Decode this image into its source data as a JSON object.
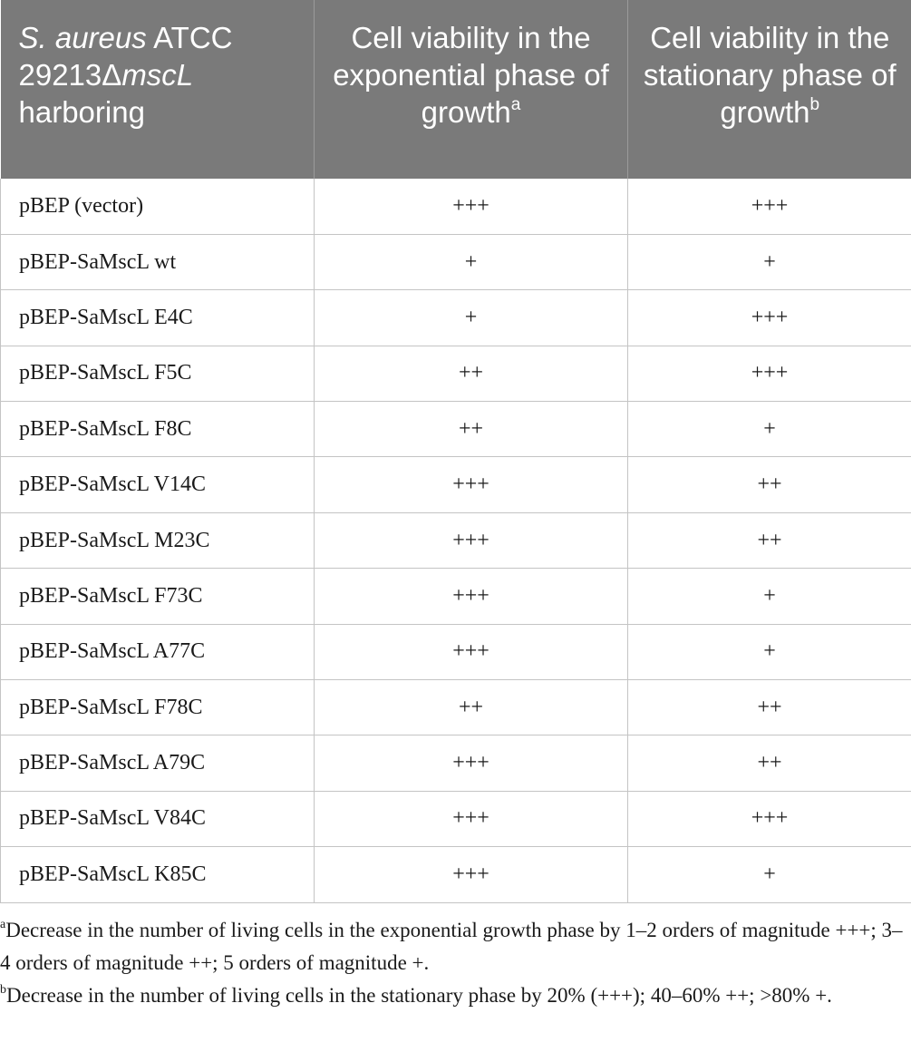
{
  "table": {
    "headers": {
      "col1_italic": "S. aureus",
      "col1_mid": " ATCC 29213Δ",
      "col1_gene": "mscL",
      "col1_end": " harboring",
      "col2": "Cell viability in the exponential phase of growth",
      "col2_sup": "a",
      "col3": "Cell viability in the stationary phase of growth",
      "col3_sup": "b"
    },
    "rows": [
      {
        "construct": "pBEP (vector)",
        "exponential": "+++",
        "stationary": "+++"
      },
      {
        "construct": "pBEP-SaMscL wt",
        "exponential": "+",
        "stationary": "+"
      },
      {
        "construct": "pBEP-SaMscL E4C",
        "exponential": "+",
        "stationary": "+++"
      },
      {
        "construct": "pBEP-SaMscL F5C",
        "exponential": "++",
        "stationary": "+++"
      },
      {
        "construct": "pBEP-SaMscL F8C",
        "exponential": "++",
        "stationary": "+"
      },
      {
        "construct": "pBEP-SaMscL V14C",
        "exponential": "+++",
        "stationary": "++"
      },
      {
        "construct": "pBEP-SaMscL M23C",
        "exponential": "+++",
        "stationary": "++"
      },
      {
        "construct": "pBEP-SaMscL F73C",
        "exponential": "+++",
        "stationary": "+"
      },
      {
        "construct": "pBEP-SaMscL A77C",
        "exponential": "+++",
        "stationary": "+"
      },
      {
        "construct": "pBEP-SaMscL F78C",
        "exponential": "++",
        "stationary": "++"
      },
      {
        "construct": "pBEP-SaMscL A79C",
        "exponential": "+++",
        "stationary": "++"
      },
      {
        "construct": "pBEP-SaMscL V84C",
        "exponential": "+++",
        "stationary": "+++"
      },
      {
        "construct": "pBEP-SaMscL K85C",
        "exponential": "+++",
        "stationary": "+"
      }
    ]
  },
  "footnotes": [
    {
      "mark": "a",
      "text": "Decrease in the number of living cells in the exponential growth phase by 1–2 orders of magnitude +++; 3–4 orders of magnitude ++; 5 orders of magnitude +."
    },
    {
      "mark": "b",
      "text": "Decrease in the number of living cells in the stationary phase by 20% (+++); 40–60% ++; >80% +."
    }
  ],
  "colors": {
    "header_bg": "#7a7a7a",
    "header_text": "#ffffff",
    "grid": "#c4c4c4"
  }
}
